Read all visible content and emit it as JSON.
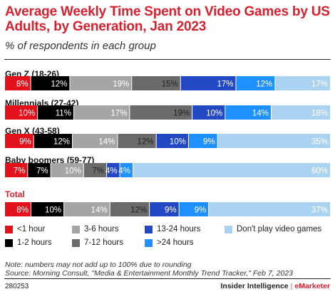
{
  "header": {
    "title": "Average Weekly Time Spent on Video Games by US Adults, by Generation, Jan 2023",
    "subtitle": "% of respondents in each group"
  },
  "colors": {
    "title": "#d8202f",
    "bands": [
      "#e3111b",
      "#000000",
      "#a5a5a5",
      "#6a6a6a",
      "#2348c4",
      "#1e90ff",
      "#a9d3f1"
    ],
    "label_light": "#ffffff",
    "label_dark": "#333333"
  },
  "chart_data": {
    "type": "bar",
    "orientation": "horizontal",
    "stacked": true,
    "categories": [
      "Gen Z (18-26)",
      "Millennials (27-42)",
      "Gen X (43-58)",
      "Baby boomers (59-77)",
      "Total"
    ],
    "series": [
      {
        "name": "<1 hour",
        "values": [
          8,
          10,
          9,
          7,
          8
        ]
      },
      {
        "name": "1-2 hours",
        "values": [
          12,
          11,
          12,
          7,
          10
        ]
      },
      {
        "name": "3-6 hours",
        "values": [
          19,
          17,
          14,
          10,
          14
        ]
      },
      {
        "name": "7-12 hours",
        "values": [
          15,
          19,
          12,
          7,
          12
        ]
      },
      {
        "name": "13-24 hours",
        "values": [
          17,
          10,
          10,
          4,
          9
        ]
      },
      {
        "name": ">24 hours",
        "values": [
          12,
          14,
          9,
          4,
          9
        ]
      },
      {
        "name": "Don't play video games",
        "values": [
          17,
          18,
          35,
          60,
          37
        ]
      }
    ],
    "value_suffix": "%",
    "legend_position": "bottom",
    "grid": false
  },
  "notes": {
    "note": "Note: numbers may not add up to 100% due to rounding",
    "source": "Source: Morning Consult, \"Media & Entertainment Monthly Trend Tracker,\" Feb 7, 2023"
  },
  "footer": {
    "chart_id": "280253",
    "brand_main": "Insider Intelligence",
    "brand_sep": "|",
    "brand_second": "eMarketer"
  }
}
